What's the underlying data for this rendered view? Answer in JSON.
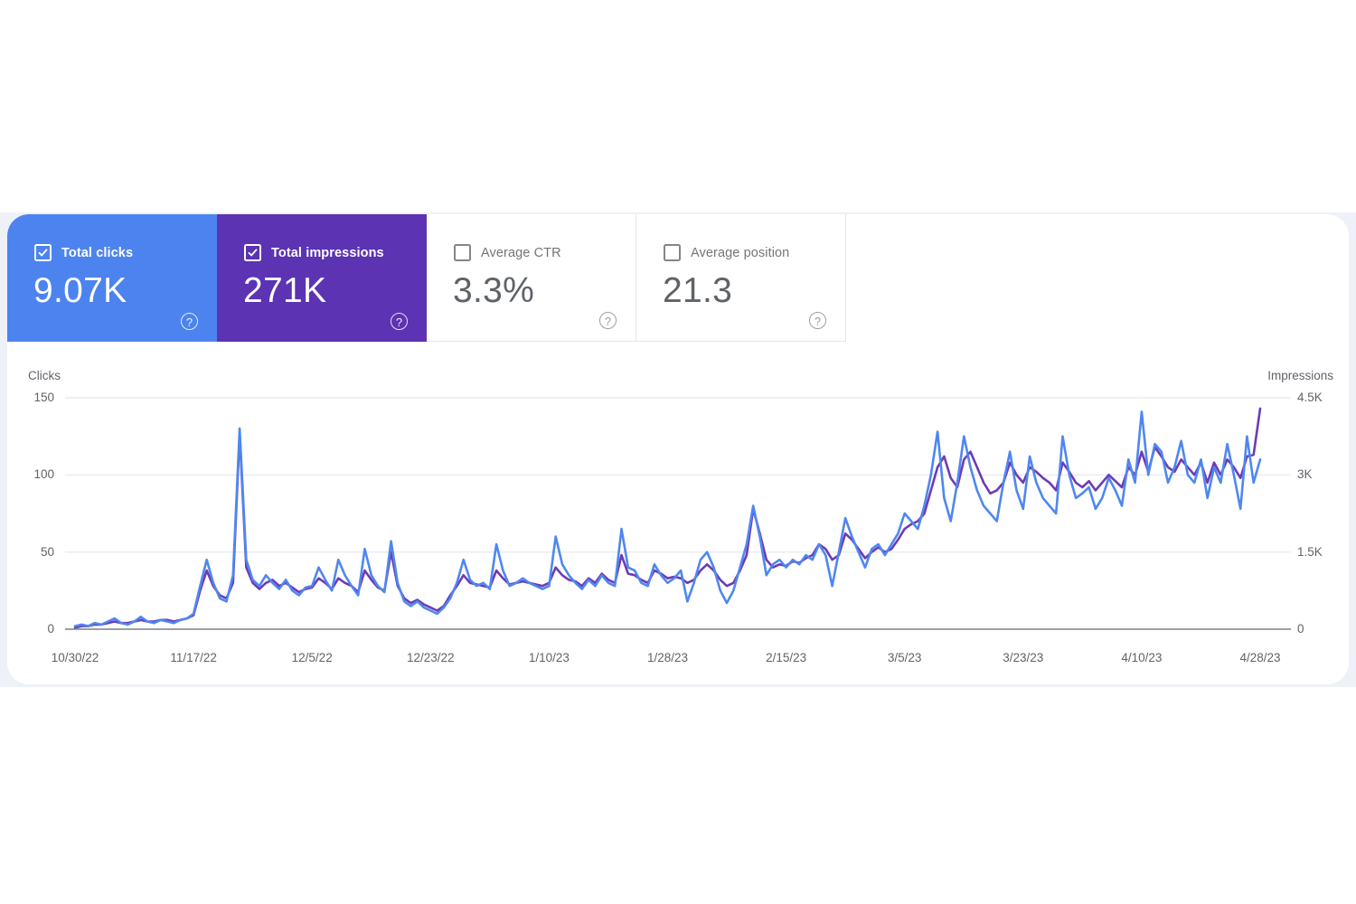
{
  "icons": {
    "help_glyph": "?"
  },
  "metrics_bar": {
    "cards": [
      {
        "id": "total-clicks",
        "label": "Total clicks",
        "value": "9.07K",
        "checked": true,
        "bg": "#4d83ee"
      },
      {
        "id": "total-impressions",
        "label": "Total impressions",
        "value": "271K",
        "checked": true,
        "bg": "#5c33b2"
      },
      {
        "id": "average-ctr",
        "label": "Average CTR",
        "value": "3.3%",
        "checked": false,
        "bg": "#ffffff"
      },
      {
        "id": "average-position",
        "label": "Average position",
        "value": "21.3",
        "checked": false,
        "bg": "#ffffff"
      }
    ]
  },
  "chart_data": {
    "type": "line",
    "left_axis": {
      "title": "Clicks",
      "tick_labels": [
        "150",
        "100",
        "50",
        "0"
      ],
      "max": 150,
      "min": 0
    },
    "right_axis": {
      "title": "Impressions",
      "tick_labels": [
        "4.5K",
        "3K",
        "1.5K",
        "0"
      ],
      "max": 4500,
      "min": 0
    },
    "x_tick_labels": [
      "10/30/22",
      "11/17/22",
      "12/5/22",
      "12/23/22",
      "1/10/23",
      "1/28/23",
      "2/15/23",
      "3/5/23",
      "3/23/23",
      "4/10/23",
      "4/28/23"
    ],
    "x_tick_interval_days": 18,
    "grid": true,
    "series": [
      {
        "name": "Clicks",
        "axis": "left",
        "color": "#4f87f0",
        "values": [
          2,
          3,
          2,
          4,
          3,
          5,
          7,
          4,
          3,
          5,
          8,
          5,
          4,
          6,
          5,
          4,
          6,
          7,
          10,
          28,
          45,
          30,
          20,
          18,
          35,
          130,
          45,
          32,
          28,
          35,
          30,
          26,
          32,
          25,
          22,
          27,
          28,
          40,
          32,
          25,
          45,
          35,
          28,
          22,
          52,
          35,
          28,
          24,
          57,
          30,
          18,
          15,
          18,
          14,
          12,
          10,
          14,
          20,
          30,
          45,
          32,
          28,
          30,
          26,
          55,
          38,
          28,
          30,
          33,
          30,
          28,
          26,
          28,
          60,
          42,
          35,
          30,
          26,
          32,
          28,
          35,
          30,
          28,
          65,
          40,
          38,
          30,
          28,
          42,
          35,
          30,
          33,
          38,
          18,
          30,
          45,
          50,
          40,
          25,
          17,
          25,
          40,
          55,
          80,
          60,
          35,
          42,
          45,
          40,
          45,
          42,
          48,
          45,
          55,
          48,
          28,
          50,
          72,
          60,
          50,
          40,
          52,
          55,
          48,
          55,
          62,
          75,
          70,
          65,
          80,
          100,
          128,
          85,
          70,
          95,
          125,
          105,
          90,
          80,
          75,
          70,
          95,
          115,
          90,
          78,
          112,
          95,
          85,
          80,
          75,
          125,
          100,
          85,
          88,
          92,
          78,
          85,
          98,
          90,
          80,
          110,
          95,
          141,
          100,
          120,
          115,
          95,
          105,
          122,
          100,
          95,
          110,
          85,
          105,
          95,
          120,
          100,
          78,
          125,
          95,
          110
        ]
      },
      {
        "name": "Impressions",
        "axis": "right",
        "color": "#6d3bb5",
        "values": [
          30,
          60,
          60,
          90,
          90,
          120,
          150,
          120,
          120,
          150,
          180,
          150,
          150,
          180,
          180,
          150,
          180,
          210,
          270,
          750,
          1140,
          840,
          660,
          600,
          900,
          3810,
          1200,
          900,
          780,
          900,
          960,
          840,
          900,
          810,
          720,
          780,
          810,
          990,
          900,
          780,
          990,
          900,
          840,
          720,
          1140,
          960,
          810,
          750,
          1500,
          840,
          600,
          510,
          570,
          480,
          420,
          360,
          450,
          660,
          840,
          1050,
          900,
          870,
          840,
          810,
          1140,
          990,
          870,
          900,
          930,
          900,
          870,
          840,
          900,
          1200,
          1050,
          960,
          930,
          840,
          990,
          900,
          1080,
          960,
          900,
          1440,
          1080,
          1050,
          960,
          900,
          1140,
          1080,
          990,
          1020,
          990,
          900,
          960,
          1140,
          1260,
          1140,
          960,
          840,
          900,
          1140,
          1440,
          2340,
          1860,
          1350,
          1200,
          1260,
          1230,
          1320,
          1290,
          1380,
          1440,
          1650,
          1560,
          1350,
          1440,
          1860,
          1740,
          1560,
          1380,
          1500,
          1590,
          1500,
          1560,
          1740,
          1950,
          2040,
          2100,
          2250,
          2700,
          3150,
          3360,
          2940,
          2760,
          3300,
          3450,
          3150,
          2850,
          2640,
          2700,
          2850,
          3240,
          3000,
          2850,
          3150,
          3060,
          2940,
          2850,
          2700,
          3240,
          3060,
          2850,
          2760,
          2880,
          2700,
          2850,
          3000,
          2880,
          2760,
          3150,
          3000,
          3450,
          3060,
          3540,
          3360,
          3150,
          3060,
          3300,
          3150,
          3000,
          3240,
          2850,
          3240,
          3000,
          3300,
          3150,
          2940,
          3360,
          3390,
          4290
        ]
      }
    ]
  }
}
